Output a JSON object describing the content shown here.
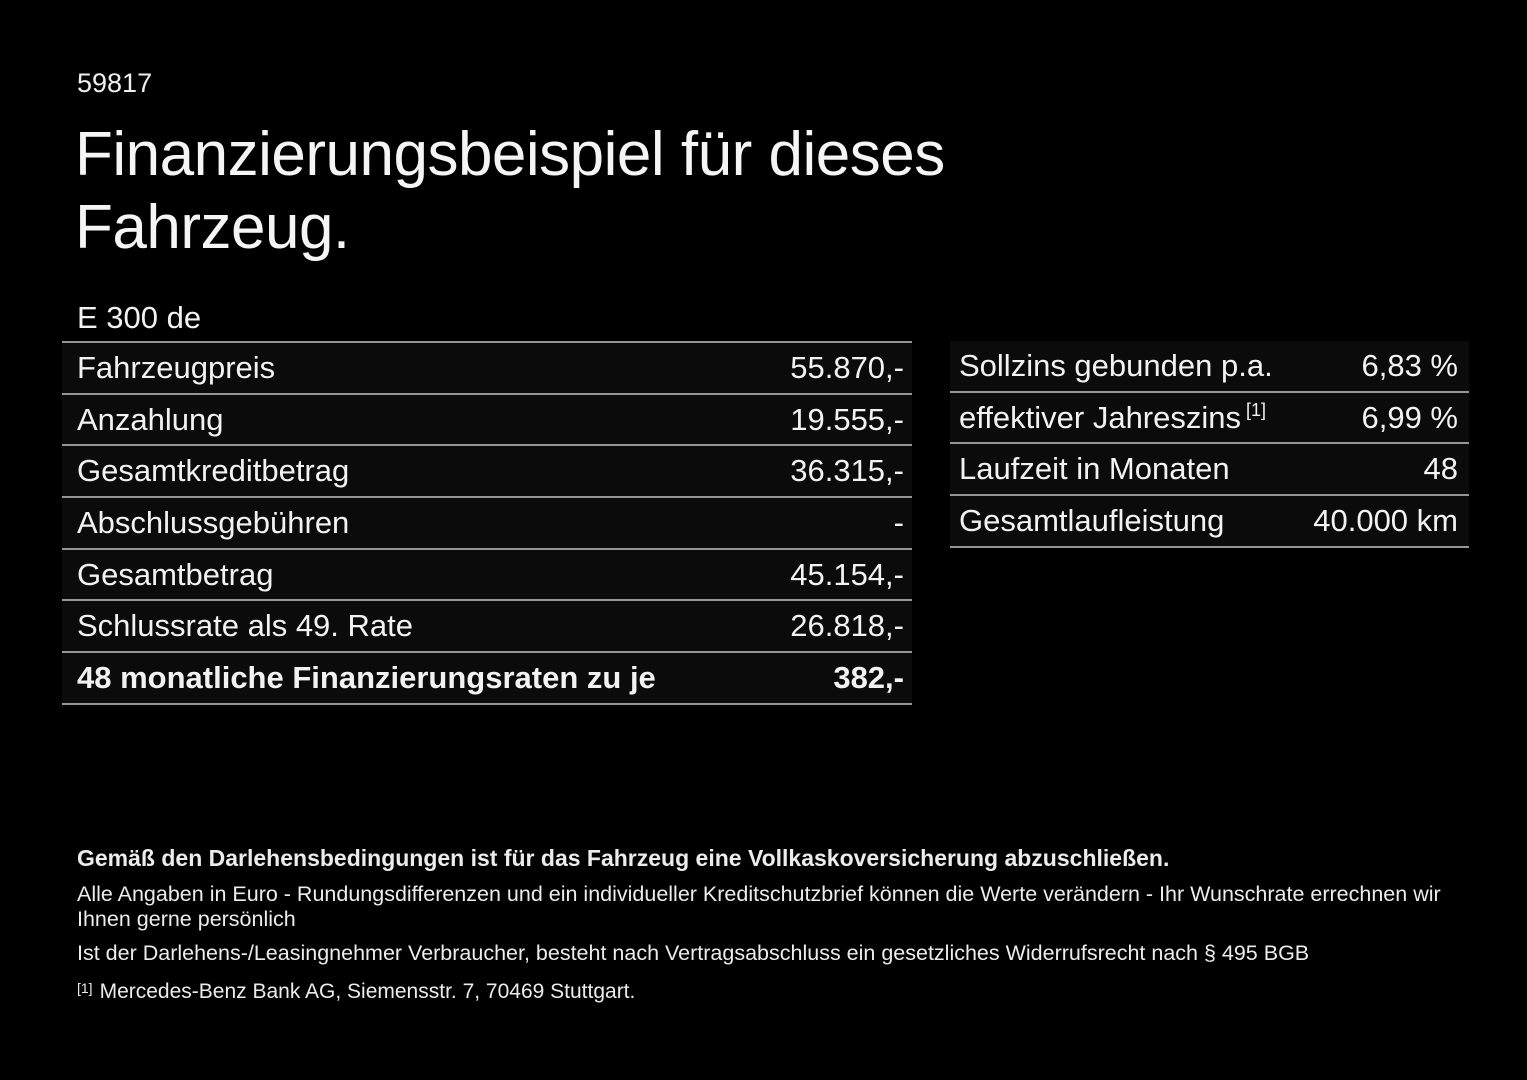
{
  "page": {
    "code": "59817",
    "title": "Finanzierungsbeispiel für dieses Fahrzeug.",
    "background_color": "#000000",
    "text_color": "#f2f2f2",
    "divider_color": "#969696"
  },
  "finance_table": {
    "model": "E 300 de",
    "rows": [
      {
        "label": "Fahrzeugpreis",
        "value": "55.870,-"
      },
      {
        "label": "Anzahlung",
        "value": "19.555,-"
      },
      {
        "label": "Gesamtkreditbetrag",
        "value": "36.315,-"
      },
      {
        "label": "Abschlussgebühren",
        "value": "-"
      },
      {
        "label": "Gesamtbetrag",
        "value": "45.154,-"
      },
      {
        "label": "Schlussrate als 49. Rate",
        "value": "26.818,-"
      },
      {
        "label": "48 monatliche Finanzierungsraten zu je",
        "value": "382,-"
      }
    ]
  },
  "conditions_table": {
    "rows": [
      {
        "label": "Sollzins gebunden p.a.",
        "footnote_marker": "",
        "value": "6,83 %"
      },
      {
        "label": "effektiver Jahreszins",
        "footnote_marker": "[1]",
        "value": "6,99 %"
      },
      {
        "label": "Laufzeit in Monaten",
        "footnote_marker": "",
        "value": "48"
      },
      {
        "label": "Gesamtlaufleistung",
        "footnote_marker": "",
        "value": "40.000 km"
      }
    ]
  },
  "footer": {
    "insurance_note": "Gemäß den Darlehensbedingungen ist für das Fahrzeug eine Vollkaskoversicherung abzuschließen.",
    "disclaimer": "Alle Angaben in Euro - Rundungsdifferenzen und ein individueller Kreditschutzbrief können die Werte verändern - Ihr Wunschrate errechnen wir Ihnen gerne persönlich",
    "withdrawal_note": "Ist der Darlehens-/Leasingnehmer Verbraucher, besteht nach Vertragsabschluss ein gesetzliches Widerrufsrecht nach § 495 BGB",
    "footnote_marker": "[1]",
    "footnote_text": "Mercedes-Benz Bank AG, Siemensstr. 7, 70469 Stuttgart."
  }
}
